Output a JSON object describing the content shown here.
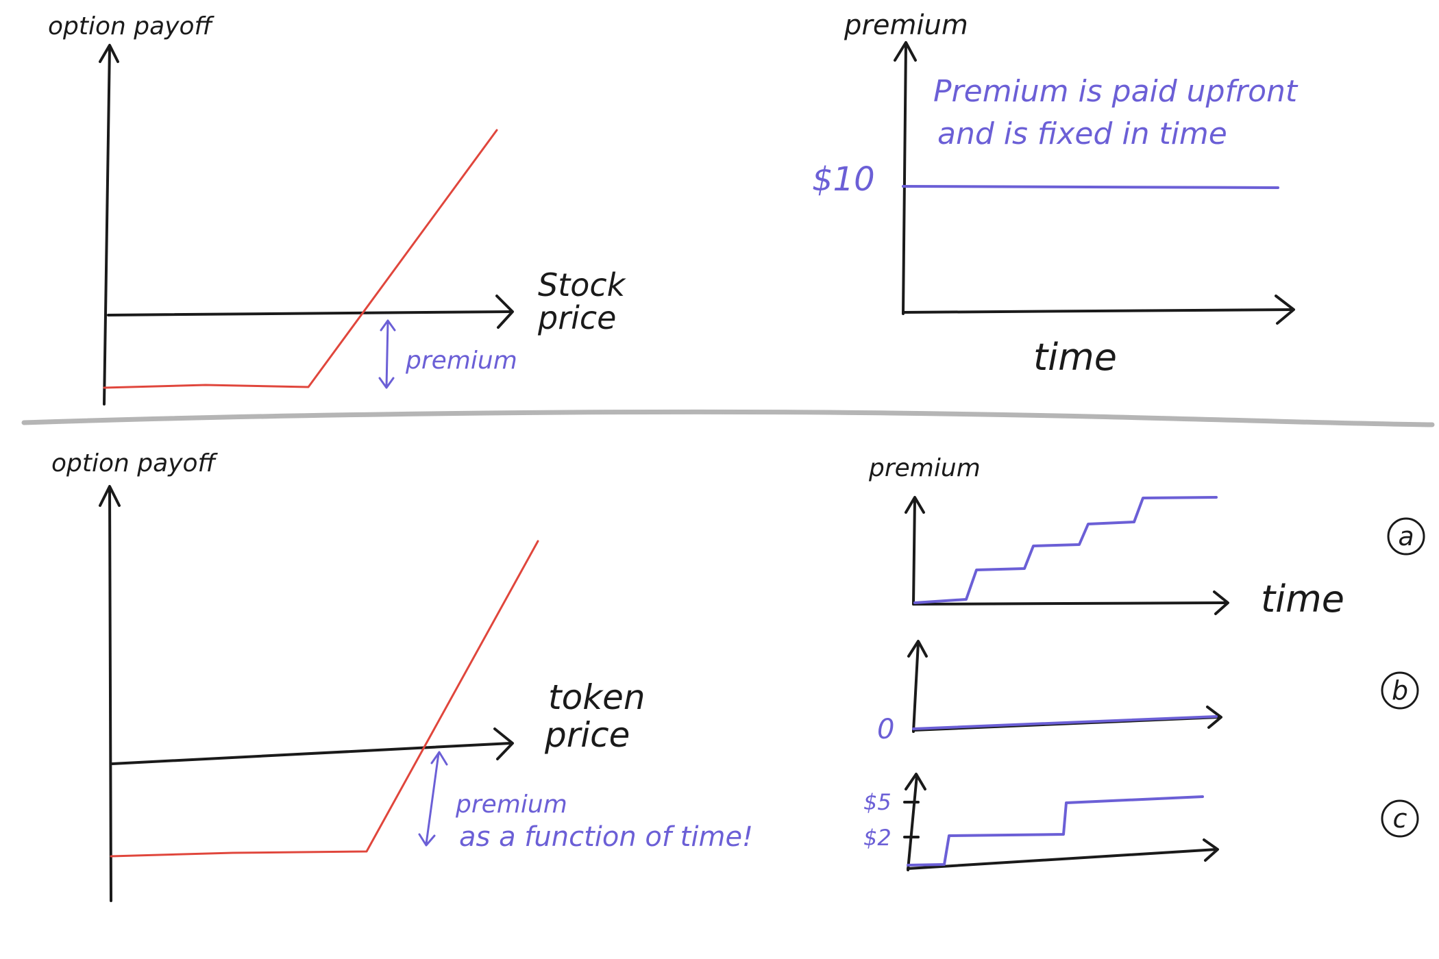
{
  "top_left": {
    "y_label": "option payoff",
    "x_label_line1": "Stock",
    "x_label_line2": "price",
    "premium_label": "premium"
  },
  "top_right": {
    "y_label": "premium",
    "note_line1": "Premium is paid upfront",
    "note_line2": "and is fixed in time",
    "value_label": "$10",
    "x_label": "time"
  },
  "bottom_left": {
    "y_label": "option payoff",
    "x_label_line1": "token",
    "x_label_line2": "price",
    "premium_label_line1": "premium",
    "premium_label_line2": "as a function of time!"
  },
  "bottom_right": {
    "chart_a": {
      "y_label": "premium",
      "x_label": "time",
      "marker": "a"
    },
    "chart_b": {
      "zero_label": "0",
      "marker": "b"
    },
    "chart_c": {
      "tick_high": "$5",
      "tick_low": "$2",
      "marker": "c"
    }
  },
  "colors": {
    "ink": "#1a1a1a",
    "payoff_red": "#e0463c",
    "premium_blue": "#6b5fd6",
    "divider_gray": "#a8a8a8"
  }
}
